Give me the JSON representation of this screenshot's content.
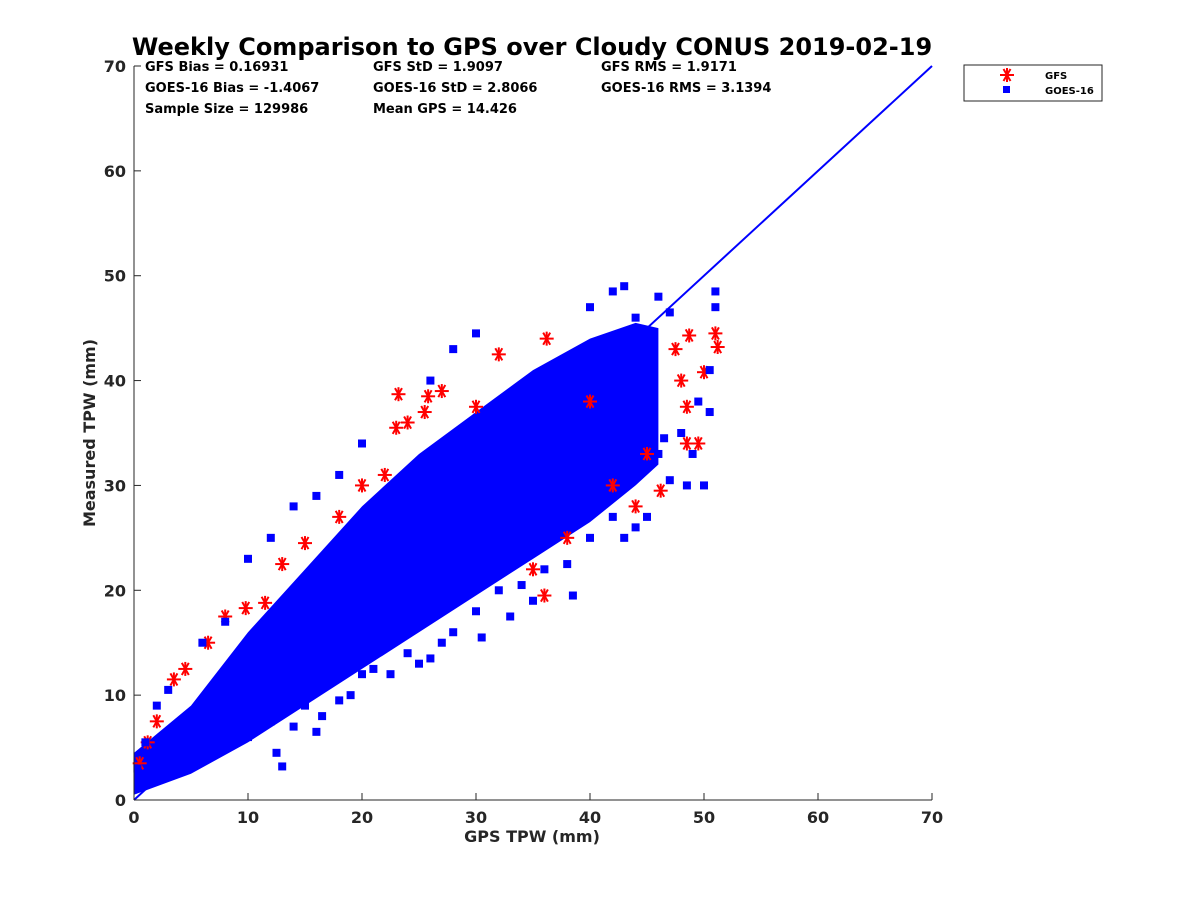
{
  "chart_data": {
    "type": "scatter",
    "title": "Weekly Comparison to GPS over Cloudy CONUS 2019-02-19",
    "xlabel": "GPS TPW (mm)",
    "ylabel": "Measured TPW (mm)",
    "xlim": [
      0,
      70
    ],
    "ylim": [
      0,
      70
    ],
    "xticks": [
      "0",
      "10",
      "20",
      "30",
      "40",
      "50",
      "60",
      "70"
    ],
    "yticks": [
      "0",
      "10",
      "20",
      "30",
      "40",
      "50",
      "60",
      "70"
    ],
    "grid": false,
    "legend_position": "outside top-right",
    "stats": [
      [
        "GFS Bias = 0.16931",
        "GFS StD = 1.9097",
        "GFS RMS = 1.9171"
      ],
      [
        "GOES-16 Bias = -1.4067",
        "GOES-16 StD = 2.8066",
        "GOES-16 RMS = 3.1394"
      ],
      [
        "Sample Size = 129986",
        "Mean GPS = 14.426",
        ""
      ]
    ],
    "reference_line": {
      "x": [
        0,
        70
      ],
      "y": [
        0,
        70
      ],
      "color": "#0000ff"
    },
    "series": [
      {
        "name": "GFS",
        "marker": "asterisk",
        "color": "#ff0000",
        "points": [
          [
            0.5,
            3.5
          ],
          [
            1.2,
            5.5
          ],
          [
            2.0,
            7.5
          ],
          [
            3.5,
            11.5
          ],
          [
            4.5,
            12.5
          ],
          [
            6.5,
            15
          ],
          [
            8,
            17.5
          ],
          [
            9.8,
            18.3
          ],
          [
            11.5,
            18.8
          ],
          [
            13,
            22.5
          ],
          [
            15,
            24.5
          ],
          [
            18,
            27
          ],
          [
            20,
            30
          ],
          [
            22,
            31
          ],
          [
            23,
            35.5
          ],
          [
            23.2,
            38.7
          ],
          [
            24,
            36
          ],
          [
            25.5,
            37
          ],
          [
            25.8,
            38.5
          ],
          [
            27,
            39
          ],
          [
            30,
            37.5
          ],
          [
            32,
            42.5
          ],
          [
            36.2,
            44
          ],
          [
            36,
            19.5
          ],
          [
            44,
            28
          ],
          [
            45,
            33
          ],
          [
            46.2,
            29.5
          ],
          [
            47.5,
            43
          ],
          [
            48,
            40
          ],
          [
            48.5,
            37.5
          ],
          [
            48.7,
            44.3
          ],
          [
            48.5,
            34
          ],
          [
            49.5,
            34
          ],
          [
            50,
            40.8
          ],
          [
            51,
            44.5
          ],
          [
            51.2,
            43.2
          ],
          [
            40,
            38
          ],
          [
            42,
            30
          ],
          [
            35,
            22
          ],
          [
            38,
            25
          ]
        ]
      },
      {
        "name": "GOES-16",
        "marker": "square",
        "color": "#0000ff",
        "points": [
          [
            5,
            3.5
          ],
          [
            10,
            6
          ],
          [
            10.5,
            6.5
          ],
          [
            12,
            7.5
          ],
          [
            12.5,
            4.5
          ],
          [
            13,
            3.2
          ],
          [
            14,
            7
          ],
          [
            15,
            9
          ],
          [
            16,
            6.5
          ],
          [
            16.5,
            8
          ],
          [
            18,
            9.5
          ],
          [
            19,
            10
          ],
          [
            20,
            12
          ],
          [
            20.5,
            15
          ],
          [
            21,
            12.5
          ],
          [
            22.5,
            12
          ],
          [
            24,
            14
          ],
          [
            25,
            13
          ],
          [
            26,
            13.5
          ],
          [
            27,
            15
          ],
          [
            28,
            16
          ],
          [
            30,
            18
          ],
          [
            30.5,
            15.5
          ],
          [
            32,
            20
          ],
          [
            33,
            17.5
          ],
          [
            34,
            20.5
          ],
          [
            35,
            19
          ],
          [
            36,
            22
          ],
          [
            38,
            22.5
          ],
          [
            38.5,
            19.5
          ],
          [
            40,
            25
          ],
          [
            42,
            27
          ],
          [
            43,
            25
          ],
          [
            44,
            26
          ],
          [
            45,
            27
          ],
          [
            45,
            32
          ],
          [
            46,
            33
          ],
          [
            46.5,
            34.5
          ],
          [
            47,
            30.5
          ],
          [
            48,
            35
          ],
          [
            48.5,
            30
          ],
          [
            49,
            33
          ],
          [
            49.5,
            38
          ],
          [
            50,
            30
          ],
          [
            50.5,
            37
          ],
          [
            50.5,
            41
          ],
          [
            51,
            48.5
          ],
          [
            51,
            47
          ],
          [
            40,
            47
          ],
          [
            42,
            48.5
          ],
          [
            43,
            49
          ],
          [
            44,
            46
          ],
          [
            46,
            48
          ],
          [
            47,
            46.5
          ],
          [
            30,
            44.5
          ],
          [
            28,
            43
          ],
          [
            26,
            40
          ],
          [
            20,
            34
          ],
          [
            18,
            31
          ],
          [
            16,
            29
          ],
          [
            14,
            28
          ],
          [
            12,
            25
          ],
          [
            10,
            23
          ],
          [
            8,
            17
          ],
          [
            6,
            15
          ],
          [
            3,
            10.5
          ],
          [
            2,
            9
          ],
          [
            1,
            5.5
          ],
          [
            0.3,
            3
          ]
        ]
      }
    ]
  }
}
